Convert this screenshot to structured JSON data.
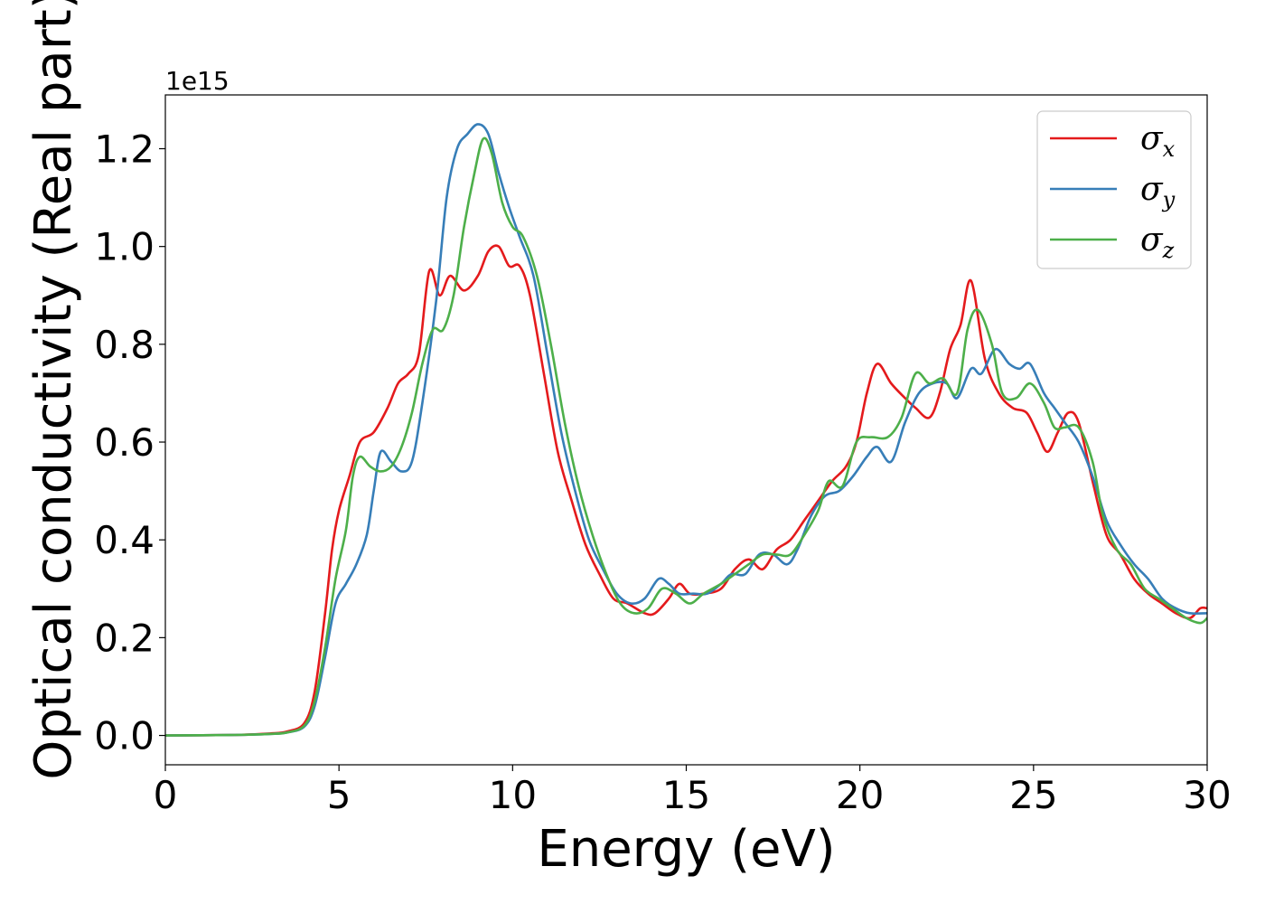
{
  "chart_data": {
    "type": "line",
    "xlabel": "Energy (eV)",
    "ylabel": "Optical conductivity (Real part)",
    "y_offset_label": "1e15",
    "xlim": [
      0,
      30
    ],
    "ylim": [
      -0.06,
      1.31
    ],
    "x_ticks": [
      0,
      5,
      10,
      15,
      20,
      25,
      30
    ],
    "x_tick_labels": [
      "0",
      "5",
      "10",
      "15",
      "20",
      "25",
      "30"
    ],
    "y_ticks": [
      0.0,
      0.2,
      0.4,
      0.6,
      0.8,
      1.0,
      1.2
    ],
    "y_tick_labels": [
      "0.0",
      "0.2",
      "0.4",
      "0.6",
      "0.8",
      "1.0",
      "1.2"
    ],
    "grid": false,
    "legend_position": "top-right",
    "series": [
      {
        "name": "σx",
        "symbol": "σ",
        "subscript": "x",
        "color": "#e41a1c",
        "points": [
          [
            0,
            0
          ],
          [
            2,
            0.001
          ],
          [
            3,
            0.004
          ],
          [
            3.5,
            0.008
          ],
          [
            4,
            0.025
          ],
          [
            4.3,
            0.09
          ],
          [
            4.6,
            0.25
          ],
          [
            4.8,
            0.38
          ],
          [
            5,
            0.46
          ],
          [
            5.3,
            0.53
          ],
          [
            5.6,
            0.6
          ],
          [
            6,
            0.62
          ],
          [
            6.4,
            0.67
          ],
          [
            6.7,
            0.72
          ],
          [
            7,
            0.74
          ],
          [
            7.3,
            0.78
          ],
          [
            7.6,
            0.95
          ],
          [
            7.9,
            0.9
          ],
          [
            8.2,
            0.94
          ],
          [
            8.6,
            0.91
          ],
          [
            9,
            0.94
          ],
          [
            9.3,
            0.99
          ],
          [
            9.6,
            1.0
          ],
          [
            9.9,
            0.96
          ],
          [
            10.2,
            0.96
          ],
          [
            10.5,
            0.9
          ],
          [
            10.9,
            0.74
          ],
          [
            11.3,
            0.58
          ],
          [
            11.7,
            0.48
          ],
          [
            12.1,
            0.39
          ],
          [
            12.5,
            0.33
          ],
          [
            12.9,
            0.28
          ],
          [
            13.3,
            0.27
          ],
          [
            13.8,
            0.25
          ],
          [
            14.1,
            0.25
          ],
          [
            14.5,
            0.28
          ],
          [
            14.8,
            0.31
          ],
          [
            15.1,
            0.29
          ],
          [
            15.5,
            0.29
          ],
          [
            16,
            0.3
          ],
          [
            16.4,
            0.34
          ],
          [
            16.8,
            0.36
          ],
          [
            17.2,
            0.34
          ],
          [
            17.6,
            0.38
          ],
          [
            18,
            0.4
          ],
          [
            18.4,
            0.44
          ],
          [
            18.8,
            0.48
          ],
          [
            19.2,
            0.52
          ],
          [
            19.6,
            0.55
          ],
          [
            19.9,
            0.6
          ],
          [
            20.2,
            0.7
          ],
          [
            20.5,
            0.76
          ],
          [
            20.9,
            0.72
          ],
          [
            21.3,
            0.69
          ],
          [
            21.6,
            0.67
          ],
          [
            22,
            0.65
          ],
          [
            22.3,
            0.7
          ],
          [
            22.6,
            0.79
          ],
          [
            22.9,
            0.84
          ],
          [
            23.2,
            0.93
          ],
          [
            23.6,
            0.77
          ],
          [
            24,
            0.7
          ],
          [
            24.4,
            0.67
          ],
          [
            24.8,
            0.66
          ],
          [
            25.1,
            0.62
          ],
          [
            25.4,
            0.58
          ],
          [
            25.7,
            0.62
          ],
          [
            26,
            0.66
          ],
          [
            26.3,
            0.64
          ],
          [
            26.7,
            0.52
          ],
          [
            27.1,
            0.41
          ],
          [
            27.5,
            0.37
          ],
          [
            27.9,
            0.32
          ],
          [
            28.3,
            0.29
          ],
          [
            28.7,
            0.27
          ],
          [
            29.1,
            0.25
          ],
          [
            29.5,
            0.24
          ],
          [
            29.8,
            0.26
          ],
          [
            30,
            0.26
          ]
        ]
      },
      {
        "name": "σy",
        "symbol": "σ",
        "subscript": "y",
        "color": "#377eb8",
        "points": [
          [
            0,
            0
          ],
          [
            2,
            0.001
          ],
          [
            3,
            0.003
          ],
          [
            3.5,
            0.006
          ],
          [
            4,
            0.018
          ],
          [
            4.3,
            0.06
          ],
          [
            4.6,
            0.16
          ],
          [
            4.9,
            0.27
          ],
          [
            5.2,
            0.31
          ],
          [
            5.5,
            0.35
          ],
          [
            5.8,
            0.41
          ],
          [
            6,
            0.5
          ],
          [
            6.2,
            0.58
          ],
          [
            6.5,
            0.56
          ],
          [
            6.8,
            0.54
          ],
          [
            7.1,
            0.56
          ],
          [
            7.4,
            0.68
          ],
          [
            7.8,
            0.89
          ],
          [
            8.1,
            1.1
          ],
          [
            8.4,
            1.2
          ],
          [
            8.7,
            1.23
          ],
          [
            9,
            1.25
          ],
          [
            9.3,
            1.23
          ],
          [
            9.6,
            1.15
          ],
          [
            9.9,
            1.08
          ],
          [
            10.2,
            1.02
          ],
          [
            10.6,
            0.94
          ],
          [
            11,
            0.78
          ],
          [
            11.4,
            0.62
          ],
          [
            11.8,
            0.5
          ],
          [
            12.2,
            0.4
          ],
          [
            12.6,
            0.34
          ],
          [
            13,
            0.29
          ],
          [
            13.4,
            0.27
          ],
          [
            13.8,
            0.28
          ],
          [
            14.2,
            0.32
          ],
          [
            14.5,
            0.31
          ],
          [
            14.8,
            0.29
          ],
          [
            15.2,
            0.29
          ],
          [
            15.6,
            0.29
          ],
          [
            16,
            0.31
          ],
          [
            16.3,
            0.33
          ],
          [
            16.7,
            0.33
          ],
          [
            17.1,
            0.37
          ],
          [
            17.5,
            0.37
          ],
          [
            17.9,
            0.35
          ],
          [
            18.2,
            0.38
          ],
          [
            18.6,
            0.45
          ],
          [
            19,
            0.49
          ],
          [
            19.4,
            0.5
          ],
          [
            19.8,
            0.53
          ],
          [
            20.2,
            0.57
          ],
          [
            20.5,
            0.59
          ],
          [
            20.9,
            0.56
          ],
          [
            21.3,
            0.64
          ],
          [
            21.7,
            0.7
          ],
          [
            22.1,
            0.72
          ],
          [
            22.5,
            0.72
          ],
          [
            22.8,
            0.69
          ],
          [
            23.2,
            0.75
          ],
          [
            23.5,
            0.74
          ],
          [
            23.9,
            0.79
          ],
          [
            24.3,
            0.76
          ],
          [
            24.6,
            0.75
          ],
          [
            24.9,
            0.76
          ],
          [
            25.3,
            0.7
          ],
          [
            25.6,
            0.67
          ],
          [
            25.9,
            0.64
          ],
          [
            26.3,
            0.6
          ],
          [
            26.7,
            0.53
          ],
          [
            27.1,
            0.44
          ],
          [
            27.5,
            0.39
          ],
          [
            27.9,
            0.35
          ],
          [
            28.3,
            0.32
          ],
          [
            28.7,
            0.28
          ],
          [
            29.1,
            0.26
          ],
          [
            29.5,
            0.25
          ],
          [
            30,
            0.25
          ]
        ]
      },
      {
        "name": "σz",
        "symbol": "σ",
        "subscript": "z",
        "color": "#4daf4a",
        "points": [
          [
            0,
            0
          ],
          [
            2,
            0.001
          ],
          [
            3,
            0.003
          ],
          [
            3.5,
            0.006
          ],
          [
            4,
            0.02
          ],
          [
            4.3,
            0.07
          ],
          [
            4.6,
            0.18
          ],
          [
            4.9,
            0.32
          ],
          [
            5.2,
            0.42
          ],
          [
            5.4,
            0.53
          ],
          [
            5.6,
            0.57
          ],
          [
            5.9,
            0.55
          ],
          [
            6.2,
            0.54
          ],
          [
            6.5,
            0.55
          ],
          [
            6.8,
            0.59
          ],
          [
            7.1,
            0.66
          ],
          [
            7.4,
            0.76
          ],
          [
            7.7,
            0.83
          ],
          [
            8,
            0.83
          ],
          [
            8.3,
            0.9
          ],
          [
            8.6,
            1.04
          ],
          [
            8.9,
            1.15
          ],
          [
            9.15,
            1.22
          ],
          [
            9.4,
            1.19
          ],
          [
            9.7,
            1.09
          ],
          [
            10,
            1.04
          ],
          [
            10.3,
            1.02
          ],
          [
            10.7,
            0.94
          ],
          [
            11.1,
            0.8
          ],
          [
            11.5,
            0.64
          ],
          [
            11.9,
            0.51
          ],
          [
            12.3,
            0.41
          ],
          [
            12.7,
            0.33
          ],
          [
            13.1,
            0.27
          ],
          [
            13.5,
            0.25
          ],
          [
            13.9,
            0.26
          ],
          [
            14.3,
            0.3
          ],
          [
            14.7,
            0.29
          ],
          [
            15.1,
            0.27
          ],
          [
            15.5,
            0.29
          ],
          [
            16,
            0.31
          ],
          [
            16.4,
            0.33
          ],
          [
            16.8,
            0.35
          ],
          [
            17.2,
            0.37
          ],
          [
            17.6,
            0.37
          ],
          [
            18,
            0.37
          ],
          [
            18.4,
            0.41
          ],
          [
            18.8,
            0.46
          ],
          [
            19.1,
            0.52
          ],
          [
            19.5,
            0.51
          ],
          [
            19.9,
            0.6
          ],
          [
            20.3,
            0.61
          ],
          [
            20.8,
            0.61
          ],
          [
            21.2,
            0.65
          ],
          [
            21.6,
            0.74
          ],
          [
            22,
            0.72
          ],
          [
            22.4,
            0.73
          ],
          [
            22.8,
            0.7
          ],
          [
            23.1,
            0.83
          ],
          [
            23.4,
            0.87
          ],
          [
            23.8,
            0.8
          ],
          [
            24.1,
            0.7
          ],
          [
            24.5,
            0.69
          ],
          [
            24.9,
            0.72
          ],
          [
            25.3,
            0.68
          ],
          [
            25.6,
            0.63
          ],
          [
            25.9,
            0.63
          ],
          [
            26.3,
            0.63
          ],
          [
            26.7,
            0.56
          ],
          [
            27,
            0.45
          ],
          [
            27.4,
            0.38
          ],
          [
            27.8,
            0.35
          ],
          [
            28.2,
            0.3
          ],
          [
            28.6,
            0.28
          ],
          [
            29,
            0.26
          ],
          [
            29.4,
            0.24
          ],
          [
            29.8,
            0.23
          ],
          [
            30,
            0.24
          ]
        ]
      }
    ]
  }
}
